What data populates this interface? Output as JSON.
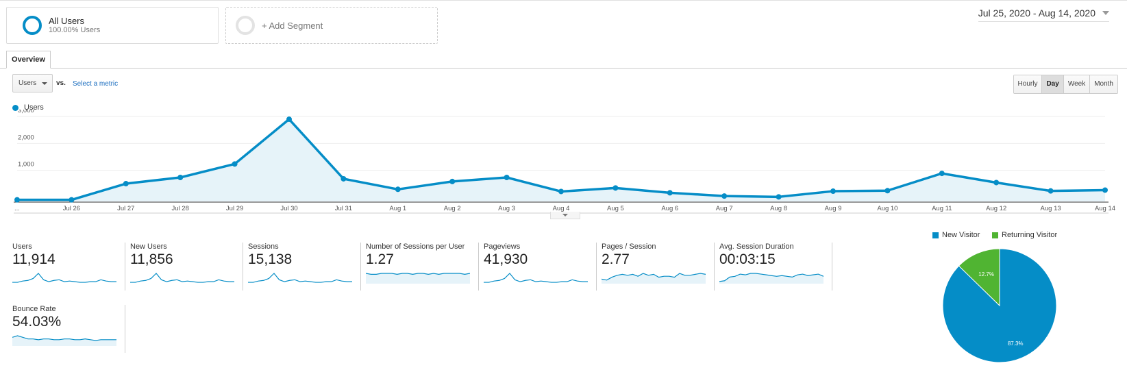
{
  "segments": {
    "all_users": {
      "title": "All Users",
      "subtitle": "100.00% Users"
    },
    "add_segment": "+ Add Segment"
  },
  "date_range": "Jul 25, 2020 - Aug 14, 2020",
  "tabs": {
    "overview": "Overview"
  },
  "metric_selector": {
    "selected": "Users",
    "vs": "vs.",
    "select_metric": "Select a metric"
  },
  "interval_buttons": [
    "Hourly",
    "Day",
    "Week",
    "Month"
  ],
  "interval_active": "Day",
  "colors": {
    "accent": "#058dc7",
    "returning": "#50b432",
    "fill": "#e6f3f9"
  },
  "chart_data": [
    {
      "type": "area",
      "series": [
        {
          "name": "Users",
          "values": [
            60,
            60,
            660,
            890,
            1390,
            3050,
            840,
            450,
            740,
            890,
            370,
            500,
            320,
            200,
            170,
            380,
            400,
            1040,
            700,
            390,
            420
          ]
        }
      ],
      "x_labels": [
        "...",
        "Jul 26",
        "Jul 27",
        "Jul 28",
        "Jul 29",
        "Jul 30",
        "Jul 31",
        "Aug 1",
        "Aug 2",
        "Aug 3",
        "Aug 4",
        "Aug 5",
        "Aug 6",
        "Aug 7",
        "Aug 8",
        "Aug 9",
        "Aug 10",
        "Aug 11",
        "Aug 12",
        "Aug 13",
        "Aug 14"
      ],
      "y_ticks": [
        "3,000",
        "2,000",
        "1,000"
      ],
      "ylim": [
        0,
        3000
      ],
      "grid": true
    },
    {
      "type": "pie",
      "series": [
        {
          "name": "New Visitor",
          "value": 87.3,
          "label": "87.3%"
        },
        {
          "name": "Returning Visitor",
          "value": 12.7,
          "label": "12.7%"
        }
      ],
      "legend": "top"
    }
  ],
  "metrics": [
    {
      "label": "Users",
      "value": "11,914",
      "spark": [
        1,
        1,
        3,
        4,
        7,
        15,
        5,
        2,
        4,
        5,
        2,
        3,
        2,
        1,
        1,
        2,
        2,
        5,
        3,
        2,
        2
      ],
      "fill": false
    },
    {
      "label": "New Users",
      "value": "11,856",
      "spark": [
        1,
        1,
        3,
        4,
        7,
        15,
        5,
        2,
        4,
        5,
        2,
        3,
        2,
        1,
        1,
        2,
        2,
        5,
        3,
        2,
        2
      ],
      "fill": false
    },
    {
      "label": "Sessions",
      "value": "15,138",
      "spark": [
        1,
        1,
        3,
        4,
        7,
        15,
        5,
        2,
        4,
        5,
        2,
        3,
        2,
        1,
        1,
        2,
        2,
        5,
        3,
        2,
        2
      ],
      "fill": false
    },
    {
      "label": "Number of Sessions per User",
      "value": "1.27",
      "spark": [
        10,
        9,
        9,
        10,
        10,
        10,
        9,
        10,
        10,
        9,
        10,
        10,
        9,
        10,
        9,
        10,
        10,
        10,
        10,
        9,
        10
      ],
      "fill": true
    },
    {
      "label": "Pageviews",
      "value": "41,930",
      "spark": [
        1,
        1,
        3,
        4,
        7,
        15,
        5,
        2,
        4,
        5,
        2,
        3,
        2,
        1,
        1,
        2,
        2,
        5,
        3,
        2,
        2
      ],
      "fill": false
    },
    {
      "label": "Pages / Session",
      "value": "2.77",
      "spark": [
        4,
        3,
        6,
        8,
        9,
        8,
        9,
        7,
        10,
        8,
        9,
        6,
        7,
        7,
        6,
        10,
        8,
        8,
        9,
        10,
        9
      ],
      "fill": true
    },
    {
      "label": "Avg. Session Duration",
      "value": "00:03:15",
      "spark": [
        2,
        3,
        8,
        9,
        12,
        11,
        13,
        13,
        12,
        11,
        10,
        9,
        10,
        9,
        8,
        11,
        12,
        10,
        11,
        12,
        9
      ],
      "fill": true
    },
    {
      "label": "Bounce Rate",
      "value": "54.03%",
      "spark": [
        10,
        12,
        10,
        8,
        8,
        7,
        8,
        8,
        7,
        7,
        8,
        8,
        7,
        7,
        8,
        7,
        6,
        7,
        7,
        7,
        7
      ],
      "fill": true
    }
  ]
}
